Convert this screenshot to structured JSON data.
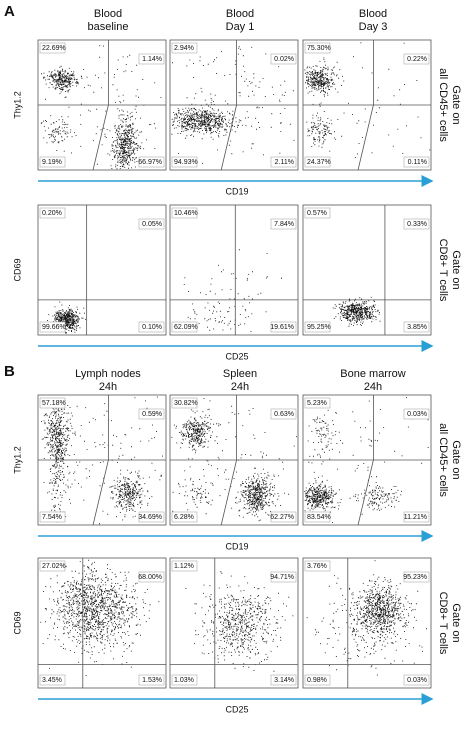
{
  "panels": [
    {
      "label": "A",
      "columns": [
        [
          "Blood",
          "baseline"
        ],
        [
          "Blood",
          "Day 1"
        ],
        [
          "Blood",
          "Day 3"
        ]
      ],
      "rows": [
        {
          "y_axis": "Thy1.2",
          "x_axis": "CD19",
          "gate": [
            "Gate on",
            "all CD45+ cells"
          ],
          "plots": [
            [
              "22.69%",
              "1.14%",
              "9.19%",
              "66.97%"
            ],
            [
              "2.94%",
              "0.02%",
              "94.93%",
              "2.11%"
            ],
            [
              "75.30%",
              "0.22%",
              "24.37%",
              "0.11%"
            ]
          ]
        },
        {
          "y_axis": "CD69",
          "x_axis": "CD25",
          "gate": [
            "Gate on",
            "CD8+ T cells"
          ],
          "plots": [
            [
              "0.20%",
              "0.05%",
              "99.66%",
              "0.10%"
            ],
            [
              "10.46%",
              "7.84%",
              "62.09%",
              "19.61%"
            ],
            [
              "0.57%",
              "0.33%",
              "95.25%",
              "3.85%"
            ]
          ]
        }
      ]
    },
    {
      "label": "B",
      "columns": [
        [
          "Lymph nodes",
          "24h"
        ],
        [
          "Spleen",
          "24h"
        ],
        [
          "Bone marrow",
          "24h"
        ]
      ],
      "rows": [
        {
          "y_axis": "Thy1.2",
          "x_axis": "CD19",
          "gate": [
            "Gate on",
            "all CD45+ cells"
          ],
          "plots": [
            [
              "57.18%",
              "0.59%",
              "7.54%",
              "34.69%"
            ],
            [
              "30.82%",
              "0.63%",
              "6.28%",
              "62.27%"
            ],
            [
              "5.23%",
              "0.03%",
              "83.54%",
              "11.21%"
            ]
          ]
        },
        {
          "y_axis": "CD69",
          "x_axis": "CD25",
          "gate": [
            "Gate on",
            "CD8+ T cells"
          ],
          "plots": [
            [
              "27.02%",
              "68.00%",
              "3.45%",
              "1.53%"
            ],
            [
              "1.12%",
              "94.71%",
              "1.03%",
              "3.14%"
            ],
            [
              "3.76%",
              "95.23%",
              "0.98%",
              "0.03%"
            ]
          ]
        }
      ]
    }
  ]
}
